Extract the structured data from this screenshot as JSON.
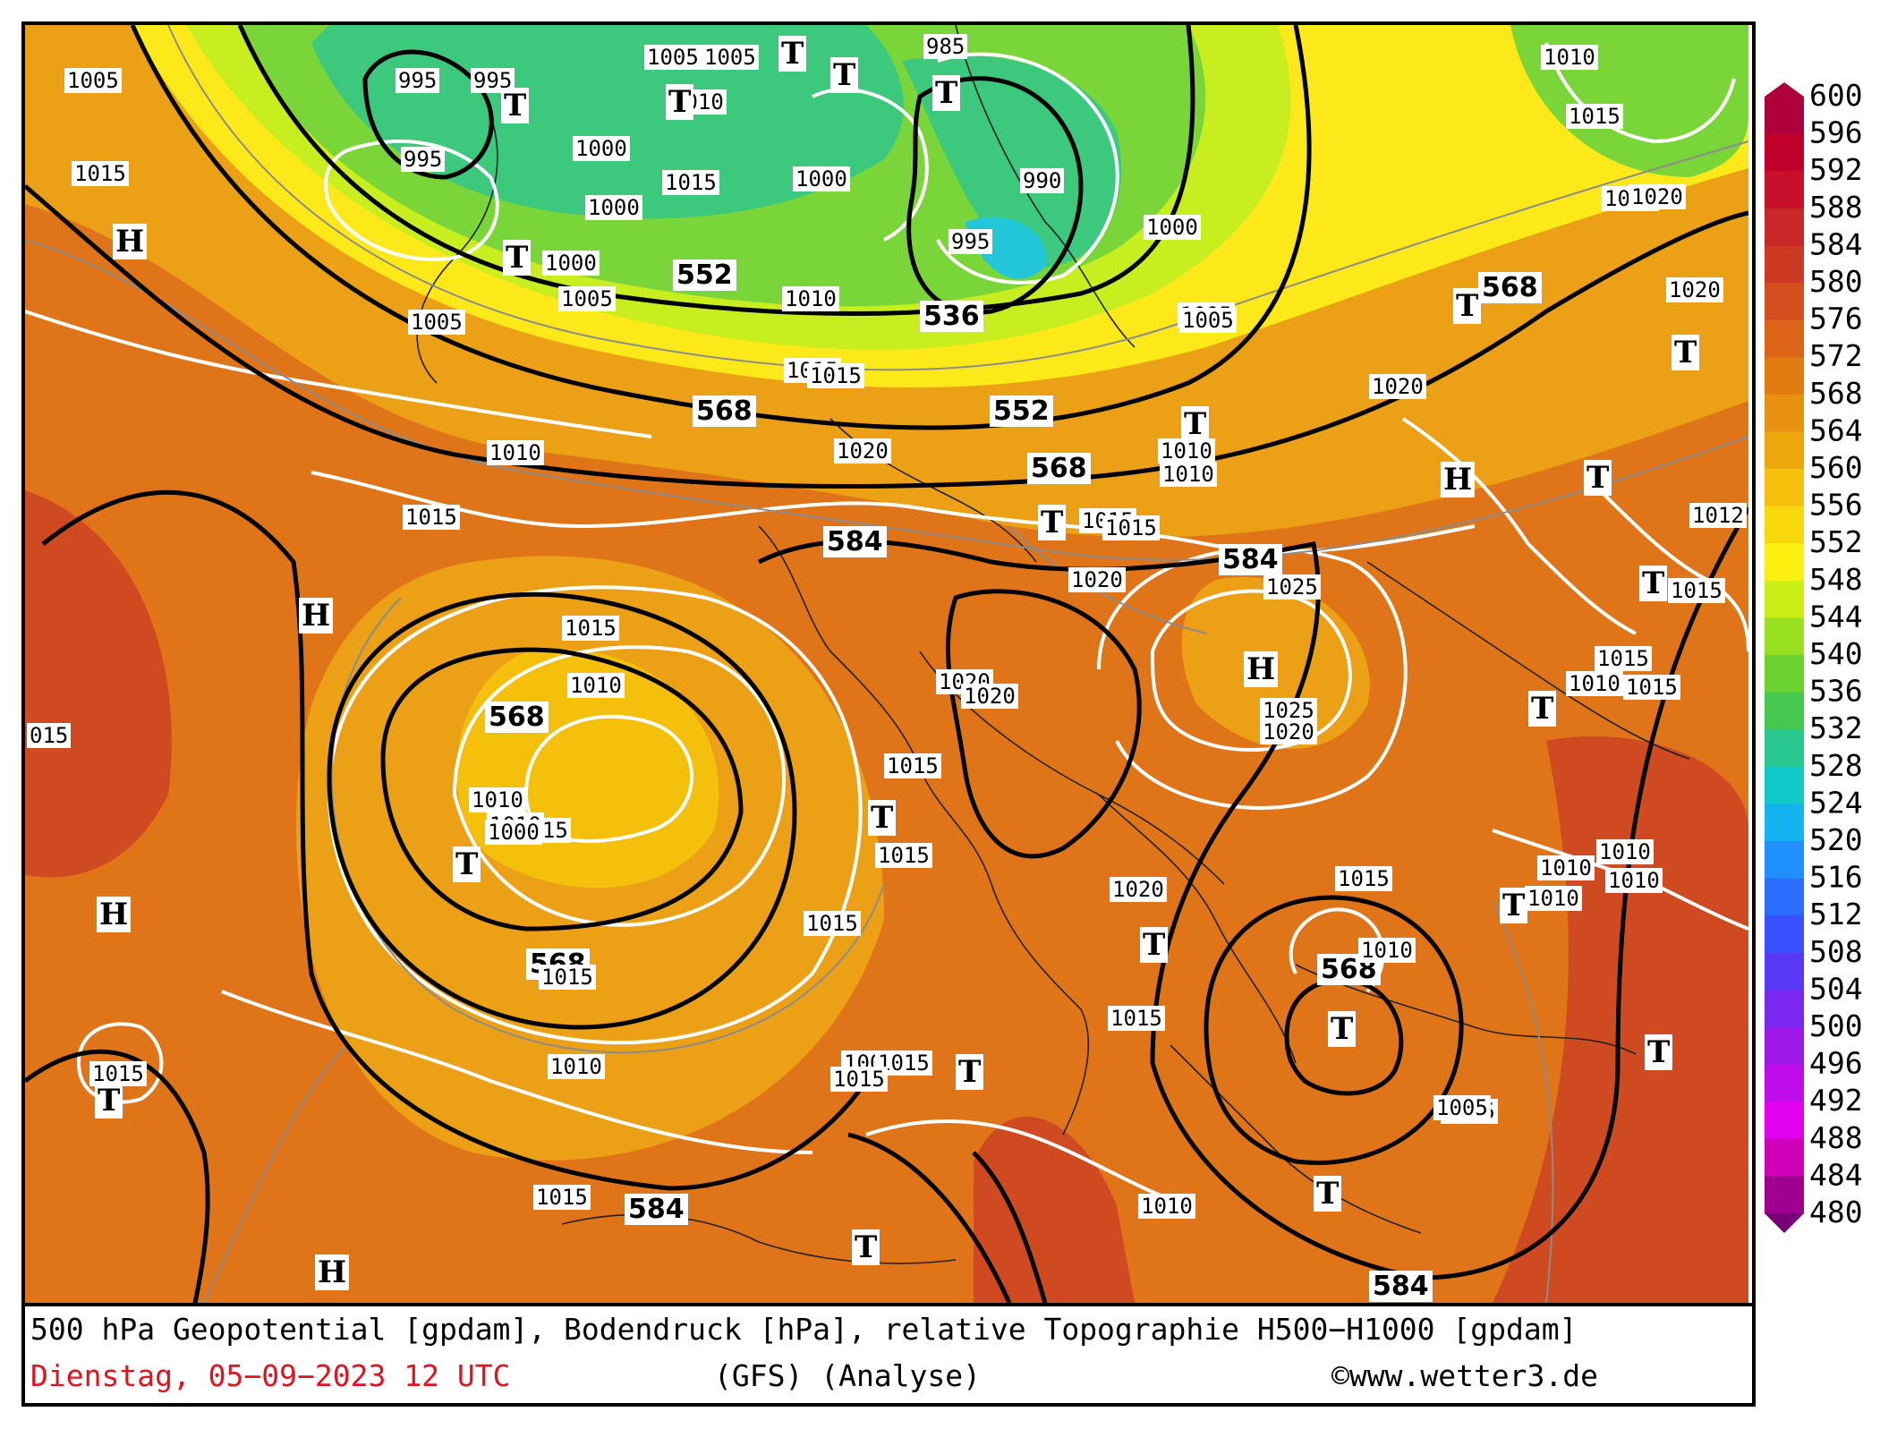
{
  "caption": {
    "line1": "500 hPa Geopotential [gpdam], Bodendruck [hPa], relative Topographie H500−H1000 [gpdam]",
    "date": "Dienstag, 05−09−2023   12 UTC",
    "model": "(GFS)  (Analyse)",
    "credit": "©www.wetter3.de"
  },
  "legend": {
    "values": [
      "600",
      "596",
      "592",
      "588",
      "584",
      "580",
      "576",
      "572",
      "568",
      "564",
      "560",
      "556",
      "552",
      "548",
      "544",
      "540",
      "536",
      "532",
      "528",
      "524",
      "520",
      "516",
      "512",
      "508",
      "504",
      "500",
      "496",
      "492",
      "488",
      "484",
      "480"
    ],
    "colors": [
      "#b0003c",
      "#c0002a",
      "#c8102a",
      "#c82828",
      "#cc3a24",
      "#d44e20",
      "#dc6418",
      "#e27a12",
      "#e89010",
      "#eea80e",
      "#f4c00c",
      "#f8d80c",
      "#fcf010",
      "#cbee14",
      "#98e020",
      "#6cd230",
      "#44c850",
      "#28c890",
      "#10c8c8",
      "#14b4f0",
      "#2090ff",
      "#2c6cff",
      "#3850ff",
      "#5a38f8",
      "#7a28f0",
      "#9c18e8",
      "#c00cec",
      "#e200f0",
      "#d000b8",
      "#a00090",
      "#780078"
    ]
  },
  "map": {
    "colors": {
      "warm_dark": "#cf4a20",
      "warm_mid": "#e07418",
      "warm_light": "#eba015",
      "yellow": "#fde81a",
      "lime": "#c8ee20",
      "green": "#7ad638",
      "teal": "#3cc97e",
      "cyan": "#22c6d8"
    },
    "geopotential_labels": [
      "552",
      "568",
      "584",
      "536",
      "552",
      "568",
      "568",
      "568",
      "584",
      "568",
      "584",
      "584",
      "568"
    ],
    "pressure_labels": [
      "1005",
      "1015",
      "995",
      "995",
      "995",
      "1005",
      "1005",
      "1000",
      "1000",
      "T010",
      "1015",
      "1000",
      "1000",
      "1005",
      "1005",
      "985",
      "990",
      "995",
      "1000",
      "1010",
      "1005",
      "1010",
      "1010",
      "1015",
      "1015",
      "1020",
      "1020",
      "1020",
      "1015",
      "1025",
      "1025",
      "1020",
      "1015",
      "1020",
      "1015",
      "1015",
      "1015",
      "1015",
      "1010",
      "1015",
      "1015",
      "1010",
      "1010",
      "1010",
      "1010",
      "1010",
      "1005",
      "1015",
      "1000",
      "015",
      "1015",
      "1010",
      "1015",
      "1020",
      "1010",
      "1010",
      "1015",
      "1015",
      "1015",
      "1015",
      "1020",
      "1005",
      "1010",
      "1005",
      "1020",
      "1020",
      "1005",
      "1015",
      "1015",
      "1015",
      "1015",
      "1010",
      "1010",
      "1010",
      "1010",
      "1012"
    ],
    "high_markers": [
      "H",
      "H",
      "H",
      "H",
      "H",
      "H",
      "H"
    ],
    "low_markers": [
      "T",
      "T",
      "T",
      "T",
      "T",
      "T",
      "T",
      "T",
      "T",
      "T",
      "T",
      "T",
      "T",
      "T",
      "T",
      "T",
      "T",
      "T",
      "T",
      "T",
      "T",
      "T",
      "T"
    ]
  }
}
